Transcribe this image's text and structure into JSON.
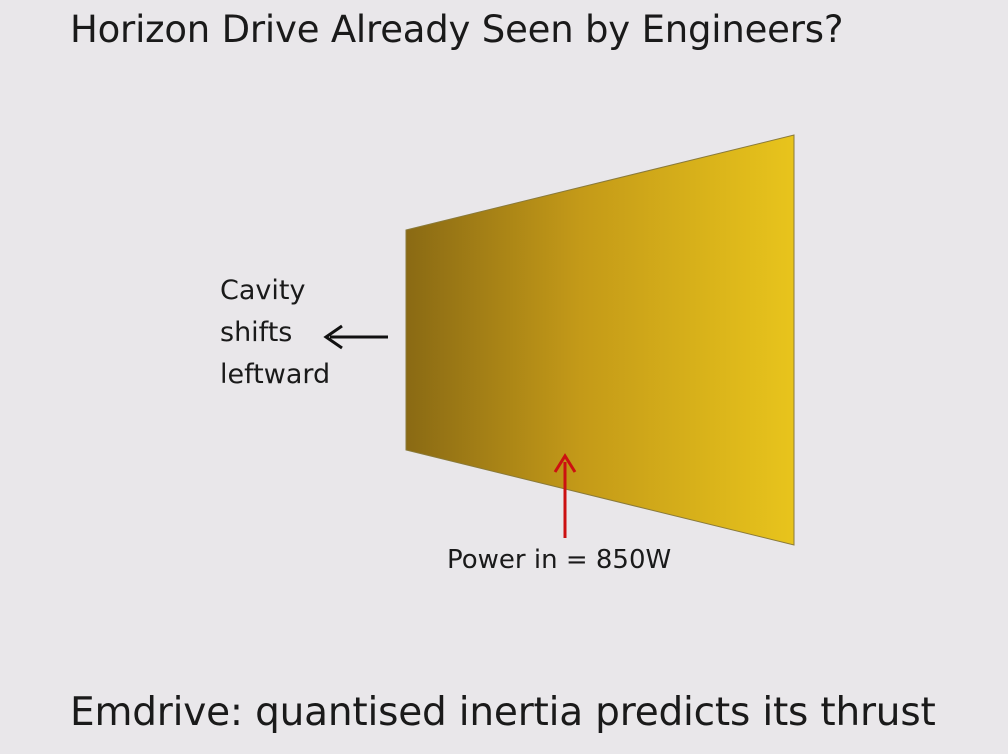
{
  "slide": {
    "title": "Horizon Drive Already Seen by Engineers?",
    "subtitle": "Emdrive: quantised inertia predicts its thrust"
  },
  "diagram": {
    "cavity_label_lines": [
      "Cavity",
      "shifts",
      "leftward"
    ],
    "power_label": "Power in = 850W",
    "colors": {
      "cavity_dark": "#8a6a14",
      "cavity_mid": "#c49a18",
      "cavity_light": "#e8c41c",
      "power_arrow": "#cc1111",
      "shift_arrow": "#111111"
    }
  }
}
